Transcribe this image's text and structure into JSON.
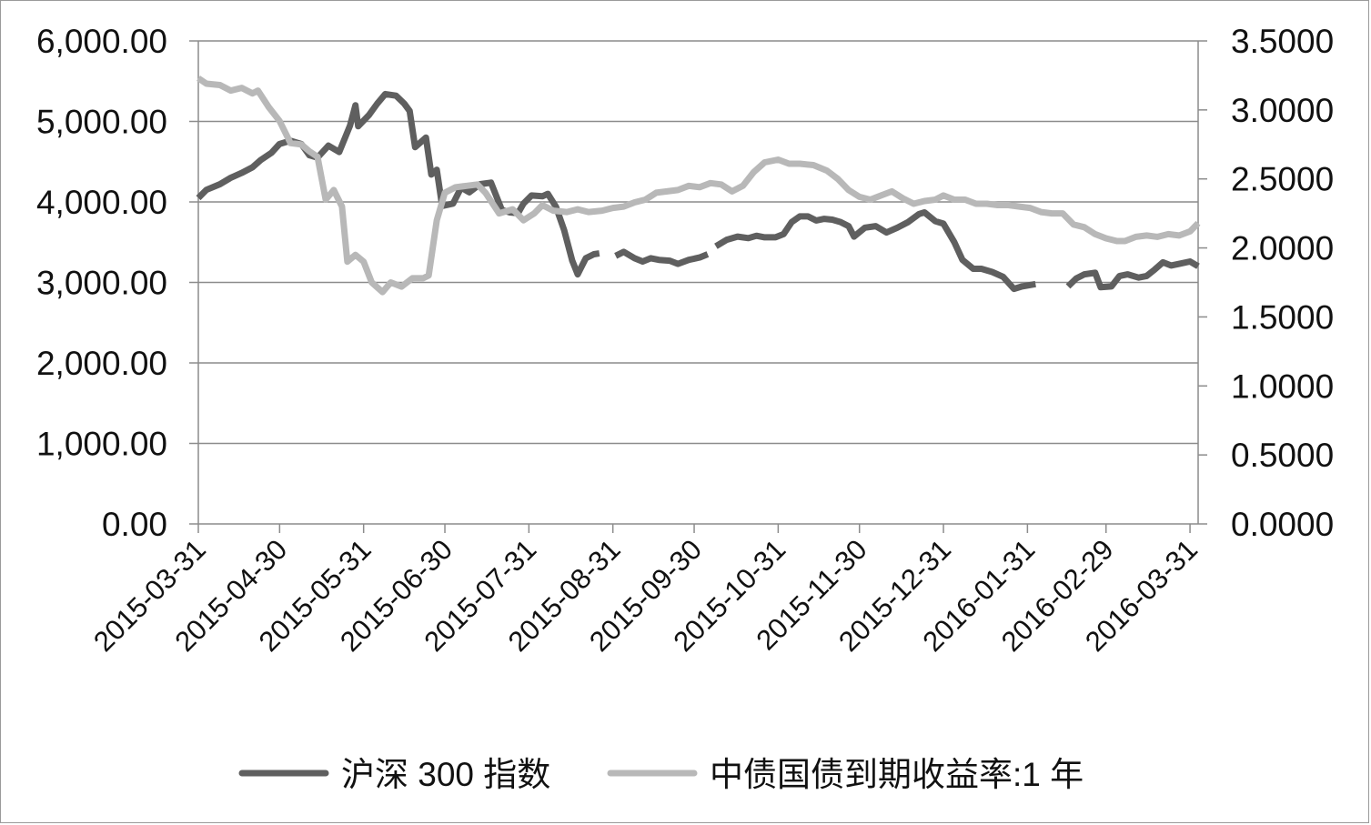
{
  "chart_data": {
    "type": "line",
    "title": "",
    "xlabel": "",
    "ylabel": "",
    "y2label": "",
    "x_tick_labels": [
      "2015-03-31",
      "2015-04-30",
      "2015-05-31",
      "2015-06-30",
      "2015-07-31",
      "2015-08-31",
      "2015-09-30",
      "2015-10-31",
      "2015-11-30",
      "2015-12-31",
      "2016-01-31",
      "2016-02-29",
      "2016-03-31"
    ],
    "y_left_ticks": [
      "0.00",
      "1,000.00",
      "2,000.00",
      "3,000.00",
      "4,000.00",
      "5,000.00",
      "6,000.00"
    ],
    "y_right_ticks": [
      "0.0000",
      "0.5000",
      "1.0000",
      "1.5000",
      "2.0000",
      "2.5000",
      "3.0000",
      "3.5000"
    ],
    "ylim": [
      0,
      6000
    ],
    "y2lim": [
      0,
      3.5
    ],
    "grid": true,
    "legend_position": "bottom",
    "series": [
      {
        "name": "沪深 300 指数",
        "axis": "left",
        "color": "#5f5f5f",
        "points": [
          [
            "2015-03-31",
            4050
          ],
          [
            "2015-04-03",
            4150
          ],
          [
            "2015-04-08",
            4220
          ],
          [
            "2015-04-12",
            4300
          ],
          [
            "2015-04-16",
            4360
          ],
          [
            "2015-04-20",
            4430
          ],
          [
            "2015-04-23",
            4520
          ],
          [
            "2015-04-27",
            4610
          ],
          [
            "2015-04-30",
            4720
          ],
          [
            "2015-05-04",
            4760
          ],
          [
            "2015-05-08",
            4720
          ],
          [
            "2015-05-11",
            4580
          ],
          [
            "2015-05-14",
            4550
          ],
          [
            "2015-05-18",
            4700
          ],
          [
            "2015-05-22",
            4620
          ],
          [
            "2015-05-26",
            4950
          ],
          [
            "2015-05-28",
            5200
          ],
          [
            "2015-05-29",
            4940
          ],
          [
            "2015-06-02",
            5080
          ],
          [
            "2015-06-05",
            5220
          ],
          [
            "2015-06-08",
            5340
          ],
          [
            "2015-06-12",
            5320
          ],
          [
            "2015-06-15",
            5220
          ],
          [
            "2015-06-17",
            5130
          ],
          [
            "2015-06-19",
            4680
          ],
          [
            "2015-06-23",
            4800
          ],
          [
            "2015-06-25",
            4340
          ],
          [
            "2015-06-27",
            4400
          ],
          [
            "2015-06-29",
            3950
          ],
          [
            "2015-07-03",
            3980
          ],
          [
            "2015-07-06",
            4180
          ],
          [
            "2015-07-09",
            4120
          ],
          [
            "2015-07-13",
            4220
          ],
          [
            "2015-07-17",
            4240
          ],
          [
            "2015-07-21",
            3900
          ],
          [
            "2015-07-24",
            3870
          ],
          [
            "2015-07-27",
            3860
          ],
          [
            "2015-07-29",
            3980
          ],
          [
            "2015-08-01",
            4080
          ],
          [
            "2015-08-05",
            4070
          ],
          [
            "2015-08-07",
            4100
          ],
          [
            "2015-08-10",
            3940
          ],
          [
            "2015-08-13",
            3650
          ],
          [
            "2015-08-16",
            3270
          ],
          [
            "2015-08-18",
            3100
          ],
          [
            "2015-08-21",
            3300
          ],
          [
            "2015-08-24",
            3350
          ],
          [
            "2015-08-26",
            3360
          ],
          null,
          [
            "2015-09-01",
            3330
          ],
          [
            "2015-09-04",
            3380
          ],
          [
            "2015-09-08",
            3300
          ],
          [
            "2015-09-11",
            3260
          ],
          [
            "2015-09-14",
            3300
          ],
          [
            "2015-09-17",
            3280
          ],
          [
            "2015-09-21",
            3270
          ],
          [
            "2015-09-24",
            3230
          ],
          [
            "2015-09-28",
            3280
          ],
          [
            "2015-10-02",
            3310
          ],
          [
            "2015-10-05",
            3350
          ],
          null,
          [
            "2015-10-08",
            3450
          ],
          [
            "2015-10-12",
            3530
          ],
          [
            "2015-10-16",
            3570
          ],
          [
            "2015-10-20",
            3550
          ],
          [
            "2015-10-23",
            3580
          ],
          [
            "2015-10-26",
            3560
          ],
          [
            "2015-10-30",
            3560
          ],
          [
            "2015-11-02",
            3600
          ],
          [
            "2015-11-05",
            3750
          ],
          [
            "2015-11-08",
            3820
          ],
          [
            "2015-11-11",
            3820
          ],
          [
            "2015-11-14",
            3770
          ],
          [
            "2015-11-17",
            3790
          ],
          [
            "2015-11-20",
            3780
          ],
          [
            "2015-11-23",
            3750
          ],
          [
            "2015-11-26",
            3700
          ],
          [
            "2015-11-28",
            3570
          ],
          [
            "2015-12-02",
            3680
          ],
          [
            "2015-12-06",
            3700
          ],
          [
            "2015-12-10",
            3620
          ],
          [
            "2015-12-14",
            3680
          ],
          [
            "2015-12-18",
            3750
          ],
          [
            "2015-12-22",
            3850
          ],
          [
            "2015-12-24",
            3870
          ],
          [
            "2015-12-28",
            3760
          ],
          [
            "2015-12-31",
            3730
          ],
          [
            "2016-01-04",
            3500
          ],
          [
            "2016-01-07",
            3280
          ],
          [
            "2016-01-11",
            3170
          ],
          [
            "2016-01-14",
            3170
          ],
          [
            "2016-01-18",
            3130
          ],
          [
            "2016-01-22",
            3070
          ],
          [
            "2016-01-26",
            2920
          ],
          [
            "2016-01-29",
            2950
          ],
          [
            "2016-02-03",
            2980
          ],
          null,
          [
            "2016-02-15",
            2950
          ],
          [
            "2016-02-18",
            3050
          ],
          [
            "2016-02-21",
            3100
          ],
          [
            "2016-02-25",
            3120
          ],
          [
            "2016-02-27",
            2940
          ],
          [
            "2016-03-02",
            2950
          ],
          [
            "2016-03-05",
            3080
          ],
          [
            "2016-03-08",
            3100
          ],
          [
            "2016-03-12",
            3060
          ],
          [
            "2016-03-15",
            3080
          ],
          [
            "2016-03-18",
            3160
          ],
          [
            "2016-03-21",
            3250
          ],
          [
            "2016-03-24",
            3210
          ],
          [
            "2016-03-27",
            3230
          ],
          [
            "2016-03-31",
            3260
          ],
          [
            "2016-04-03",
            3200
          ]
        ]
      },
      {
        "name": "中债国债到期收益率:1 年",
        "axis": "right",
        "color": "#b8b8b8",
        "points": [
          [
            "2015-03-31",
            3.23
          ],
          [
            "2015-04-03",
            3.19
          ],
          [
            "2015-04-08",
            3.18
          ],
          [
            "2015-04-12",
            3.14
          ],
          [
            "2015-04-16",
            3.16
          ],
          [
            "2015-04-20",
            3.12
          ],
          [
            "2015-04-22",
            3.14
          ],
          [
            "2015-04-26",
            3.02
          ],
          [
            "2015-04-30",
            2.92
          ],
          [
            "2015-05-04",
            2.76
          ],
          [
            "2015-05-08",
            2.75
          ],
          [
            "2015-05-11",
            2.7
          ],
          [
            "2015-05-14",
            2.66
          ],
          [
            "2015-05-17",
            2.35
          ],
          [
            "2015-05-20",
            2.42
          ],
          [
            "2015-05-23",
            2.3
          ],
          [
            "2015-05-25",
            1.9
          ],
          [
            "2015-05-28",
            1.95
          ],
          [
            "2015-05-31",
            1.9
          ],
          [
            "2015-06-03",
            1.75
          ],
          [
            "2015-06-07",
            1.68
          ],
          [
            "2015-06-10",
            1.75
          ],
          [
            "2015-06-14",
            1.72
          ],
          [
            "2015-06-18",
            1.78
          ],
          [
            "2015-06-22",
            1.78
          ],
          [
            "2015-06-24",
            1.8
          ],
          [
            "2015-06-27",
            2.2
          ],
          [
            "2015-06-30",
            2.4
          ],
          [
            "2015-07-04",
            2.44
          ],
          [
            "2015-07-08",
            2.45
          ],
          [
            "2015-07-12",
            2.46
          ],
          [
            "2015-07-15",
            2.4
          ],
          [
            "2015-07-20",
            2.25
          ],
          [
            "2015-07-25",
            2.28
          ],
          [
            "2015-07-29",
            2.2
          ],
          [
            "2015-08-02",
            2.25
          ],
          [
            "2015-08-05",
            2.31
          ],
          [
            "2015-08-09",
            2.27
          ],
          [
            "2015-08-14",
            2.26
          ],
          [
            "2015-08-18",
            2.28
          ],
          [
            "2015-08-22",
            2.26
          ],
          [
            "2015-08-27",
            2.27
          ],
          [
            "2015-08-31",
            2.29
          ],
          [
            "2015-09-04",
            2.3
          ],
          [
            "2015-09-08",
            2.33
          ],
          [
            "2015-09-12",
            2.35
          ],
          [
            "2015-09-16",
            2.4
          ],
          [
            "2015-09-20",
            2.41
          ],
          [
            "2015-09-24",
            2.42
          ],
          [
            "2015-09-28",
            2.45
          ],
          [
            "2015-10-02",
            2.44
          ],
          [
            "2015-10-06",
            2.47
          ],
          [
            "2015-10-10",
            2.46
          ],
          [
            "2015-10-14",
            2.41
          ],
          [
            "2015-10-18",
            2.45
          ],
          [
            "2015-10-22",
            2.55
          ],
          [
            "2015-10-26",
            2.62
          ],
          [
            "2015-10-31",
            2.64
          ],
          [
            "2015-11-04",
            2.61
          ],
          [
            "2015-11-08",
            2.61
          ],
          [
            "2015-11-13",
            2.6
          ],
          [
            "2015-11-18",
            2.56
          ],
          [
            "2015-11-22",
            2.5
          ],
          [
            "2015-11-26",
            2.42
          ],
          [
            "2015-11-30",
            2.37
          ],
          [
            "2015-12-04",
            2.35
          ],
          [
            "2015-12-08",
            2.38
          ],
          [
            "2015-12-12",
            2.41
          ],
          [
            "2015-12-16",
            2.36
          ],
          [
            "2015-12-20",
            2.32
          ],
          [
            "2015-12-24",
            2.34
          ],
          [
            "2015-12-28",
            2.35
          ],
          [
            "2015-12-31",
            2.38
          ],
          [
            "2016-01-04",
            2.35
          ],
          [
            "2016-01-08",
            2.35
          ],
          [
            "2016-01-12",
            2.32
          ],
          [
            "2016-01-16",
            2.32
          ],
          [
            "2016-01-20",
            2.31
          ],
          [
            "2016-01-24",
            2.31
          ],
          [
            "2016-01-28",
            2.3
          ],
          [
            "2016-02-01",
            2.29
          ],
          [
            "2016-02-05",
            2.26
          ],
          [
            "2016-02-09",
            2.25
          ],
          [
            "2016-02-13",
            2.25
          ],
          [
            "2016-02-17",
            2.17
          ],
          [
            "2016-02-21",
            2.15
          ],
          [
            "2016-02-25",
            2.1
          ],
          [
            "2016-02-29",
            2.07
          ],
          [
            "2016-03-04",
            2.05
          ],
          [
            "2016-03-07",
            2.05
          ],
          [
            "2016-03-11",
            2.08
          ],
          [
            "2016-03-15",
            2.09
          ],
          [
            "2016-03-19",
            2.08
          ],
          [
            "2016-03-23",
            2.1
          ],
          [
            "2016-03-27",
            2.09
          ],
          [
            "2016-03-31",
            2.12
          ],
          [
            "2016-04-03",
            2.18
          ]
        ]
      }
    ]
  }
}
